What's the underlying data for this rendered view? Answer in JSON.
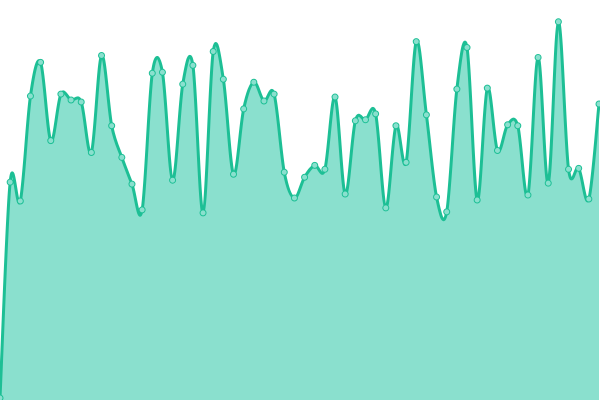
{
  "chart_data": {
    "type": "area",
    "title": "",
    "xlabel": "",
    "ylabel": "",
    "ylim": [
      0,
      100
    ],
    "grid": false,
    "legend": "none",
    "curve": "smooth",
    "markers": true,
    "colors": {
      "line": "#1dbf95",
      "fill": "#8ae0ce",
      "marker_fill": "#8ae0ce",
      "marker_stroke": "#1dbf95"
    },
    "x": [
      0,
      1,
      2,
      3,
      4,
      5,
      6,
      7,
      8,
      9,
      10,
      11,
      12,
      13,
      14,
      15,
      16,
      17,
      18,
      19,
      20,
      21,
      22,
      23,
      24,
      25,
      26,
      27,
      28,
      29,
      30,
      31,
      32,
      33,
      34,
      35,
      36,
      37,
      38,
      39,
      40,
      41,
      42,
      43,
      44,
      45,
      46,
      47,
      48,
      49,
      50,
      51,
      52,
      53,
      54,
      55,
      56,
      57,
      58,
      59
    ],
    "values": [
      0,
      54.5,
      49.75,
      76.25,
      84.75,
      65,
      76.75,
      75.25,
      74.75,
      62,
      86.5,
      68.75,
      60.75,
      54,
      47.5,
      82,
      82.25,
      55,
      79.25,
      84,
      46.75,
      87.5,
      80.5,
      56.5,
      73,
      79.75,
      75,
      76.75,
      57,
      50.5,
      55.75,
      58.75,
      57.75,
      76,
      51.5,
      70,
      70.25,
      71.75,
      48,
      68.75,
      59.5,
      90,
      71.5,
      50.75,
      47,
      78,
      88.5,
      50,
      78.25,
      62.5,
      69,
      68.75,
      51.25,
      86,
      54.25,
      95,
      57.75,
      58,
      50.25,
      74.25
    ]
  }
}
